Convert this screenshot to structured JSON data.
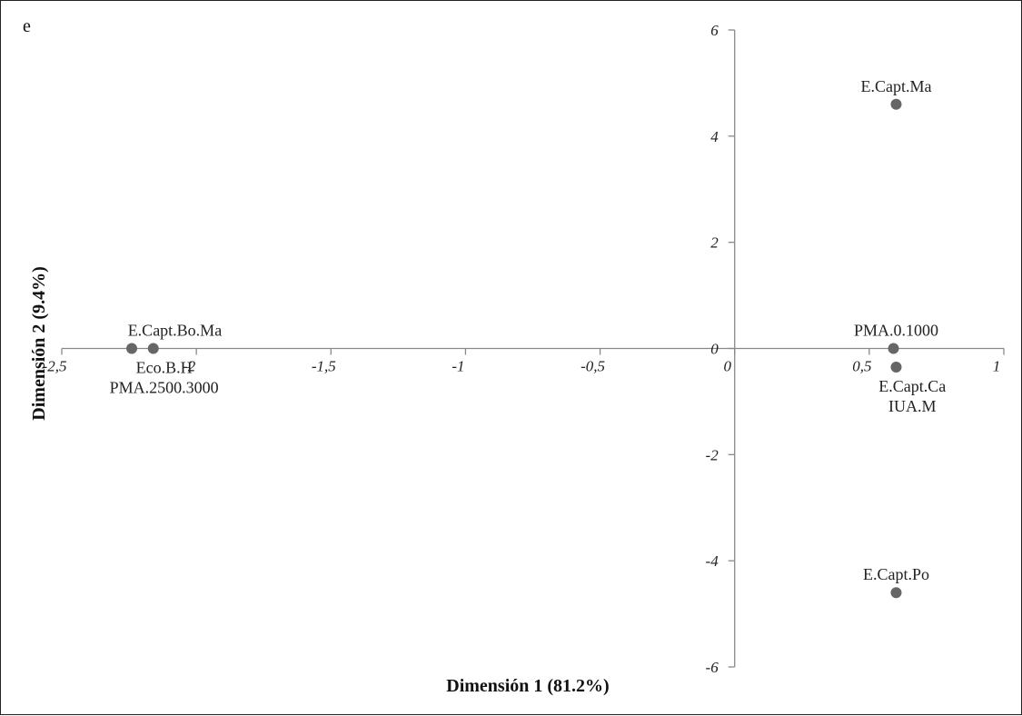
{
  "chart_data": {
    "type": "scatter",
    "panel_label": "e",
    "xlabel": "Dimensión 1 (81.2%)",
    "ylabel": "Dimensión 2 (9.4%)",
    "xlim": [
      -2.5,
      1
    ],
    "ylim": [
      -6,
      6
    ],
    "x_ticks": [
      {
        "value": -2.5,
        "label": "-2,5"
      },
      {
        "value": -2,
        "label": "-2"
      },
      {
        "value": -1.5,
        "label": "-1,5"
      },
      {
        "value": -1,
        "label": "-1"
      },
      {
        "value": -0.5,
        "label": "-0,5"
      },
      {
        "value": 0,
        "label": "0"
      },
      {
        "value": 0.5,
        "label": "0,5"
      },
      {
        "value": 1,
        "label": "1"
      }
    ],
    "y_ticks": [
      {
        "value": 6,
        "label": "6"
      },
      {
        "value": 4,
        "label": "4"
      },
      {
        "value": 2,
        "label": "2"
      },
      {
        "value": 0,
        "label": "0"
      },
      {
        "value": -2,
        "label": "-2"
      },
      {
        "value": -4,
        "label": "-4"
      },
      {
        "value": -6,
        "label": "-6"
      }
    ],
    "grid": false,
    "marker_color": "#666666",
    "points": [
      {
        "x": -2.24,
        "y": 0,
        "labels": [
          "Eco.B.H",
          "PMA.2500.3000"
        ],
        "label_pos": "below"
      },
      {
        "x": -2.16,
        "y": 0,
        "labels": [
          "E.Capt.Bo.Ma"
        ],
        "label_pos": "above"
      },
      {
        "x": 0.6,
        "y": 4.6,
        "labels": [
          "E.Capt.Ma"
        ],
        "label_pos": "above"
      },
      {
        "x": 0.59,
        "y": 0,
        "labels": [
          "PMA.0.1000"
        ],
        "label_pos": "above"
      },
      {
        "x": 0.6,
        "y": -0.35,
        "labels": [
          "E.Capt.Ca",
          "IUA.M"
        ],
        "label_pos": "below"
      },
      {
        "x": 0.6,
        "y": -4.6,
        "labels": [
          "E.Capt.Po"
        ],
        "label_pos": "above"
      }
    ]
  }
}
